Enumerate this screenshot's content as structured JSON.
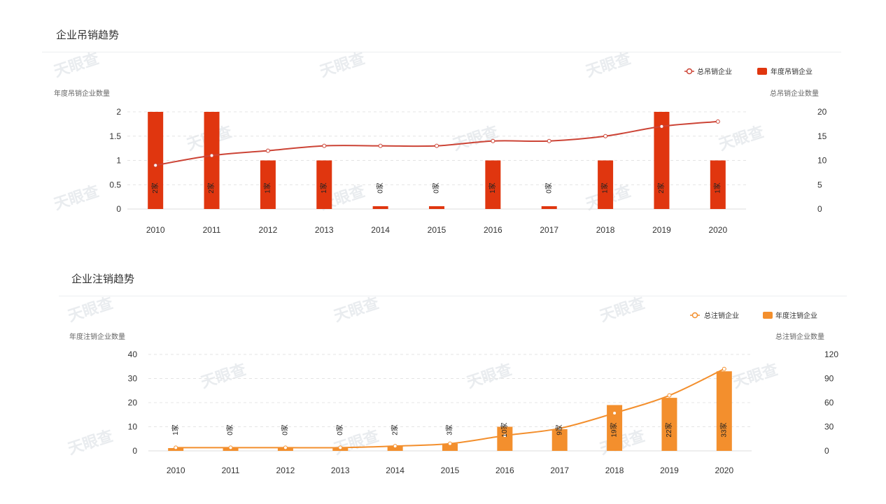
{
  "sections": {
    "revoked_title": "企业吊销趋势",
    "cancelled_title": "企业注销趋势"
  },
  "watermark": "天眼查",
  "colors": {
    "revoked_bar": "#e0360f",
    "revoked_line": "#cc4436",
    "cancelled_bar": "#f38f2d",
    "cancelled_line": "#f38f2d"
  },
  "chart_data": [
    {
      "type": "bar",
      "categories": [
        "2010",
        "2011",
        "2012",
        "2013",
        "2014",
        "2015",
        "2016",
        "2017",
        "2018",
        "2019",
        "2020"
      ],
      "series": [
        {
          "name": "年度吊销企业",
          "kind": "bar",
          "axis": "left",
          "values": [
            2,
            2,
            1,
            1,
            0,
            0,
            1,
            0,
            1,
            2,
            1
          ],
          "labels": [
            "2家",
            "2家",
            "1家",
            "1家",
            "0家",
            "0家",
            "1家",
            "0家",
            "1家",
            "2家",
            "1家"
          ]
        },
        {
          "name": "总吊销企业",
          "kind": "line",
          "axis": "right",
          "values": [
            9,
            11,
            12,
            13,
            13,
            13,
            14,
            14,
            15,
            17,
            18
          ]
        }
      ],
      "ylabel_left": "年度吊销企业数量",
      "ylabel_right": "总吊销企业数量",
      "ylim_left": [
        0,
        2
      ],
      "ylim_right": [
        0,
        20
      ],
      "yticks_left": [
        "0",
        "0.5",
        "1",
        "1.5",
        "2"
      ],
      "yticks_right": [
        "0",
        "5",
        "10",
        "15",
        "20"
      ],
      "legend_position": "top-right",
      "grid": true
    },
    {
      "type": "bar",
      "categories": [
        "2010",
        "2011",
        "2012",
        "2013",
        "2014",
        "2015",
        "2016",
        "2017",
        "2018",
        "2019",
        "2020"
      ],
      "series": [
        {
          "name": "年度注销企业",
          "kind": "bar",
          "axis": "left",
          "values": [
            1,
            0,
            0,
            0,
            2,
            3,
            10,
            9,
            19,
            22,
            33
          ],
          "labels": [
            "1家",
            "0家",
            "0家",
            "0家",
            "2家",
            "3家",
            "10家",
            "9家",
            "19家",
            "22家",
            "33家"
          ]
        },
        {
          "name": "总注销企业",
          "kind": "line",
          "axis": "right",
          "values": [
            4,
            4,
            4,
            4,
            6,
            9,
            19,
            28,
            47,
            69,
            102
          ]
        }
      ],
      "ylabel_left": "年度注销企业数量",
      "ylabel_right": "总注销企业数量",
      "ylim_left": [
        0,
        40
      ],
      "ylim_right": [
        0,
        120
      ],
      "yticks_left": [
        "0",
        "10",
        "20",
        "30",
        "40"
      ],
      "yticks_right": [
        "0",
        "30",
        "60",
        "90",
        "120"
      ],
      "legend_position": "top-right",
      "grid": true
    }
  ]
}
